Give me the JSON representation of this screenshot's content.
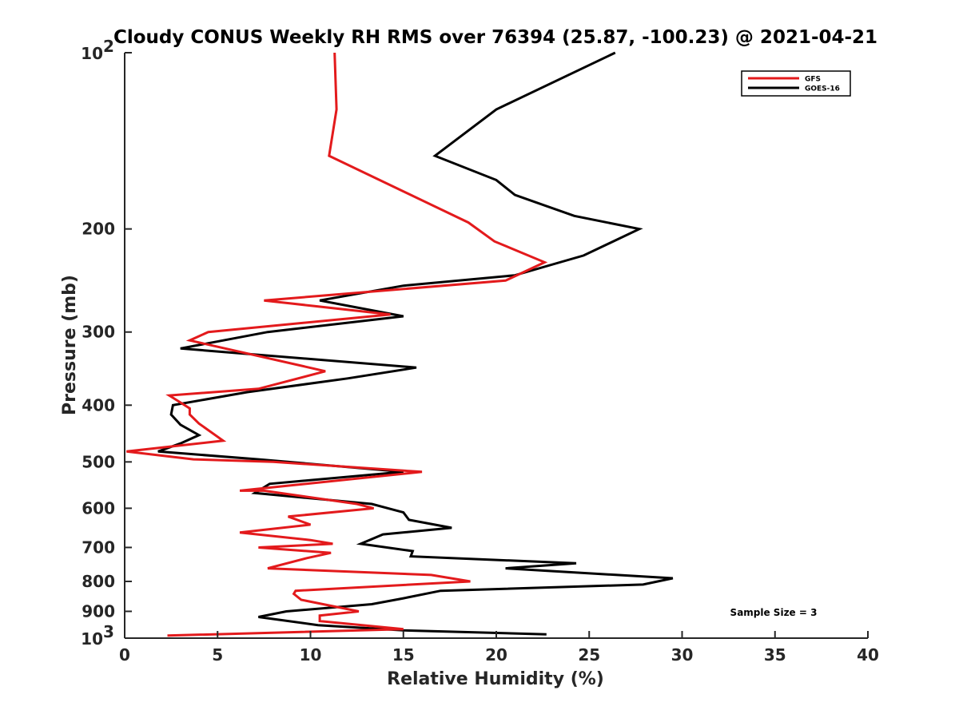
{
  "chart_data": {
    "type": "line",
    "title": "Cloudy CONUS Weekly RH RMS over 76394 (25.87, -100.23) @ 2021-04-21",
    "xlabel": "Relative Humidity (%)",
    "ylabel": "Pressure (mb)",
    "xlim": [
      0,
      40
    ],
    "ylim": [
      100,
      1000
    ],
    "yscale": "log",
    "y_reversed": true,
    "grid": false,
    "legend_position": "top-right",
    "x_ticks": [
      0,
      5,
      10,
      15,
      20,
      25,
      30,
      35,
      40
    ],
    "x_tick_labels": [
      "0",
      "5",
      "10",
      "15",
      "20",
      "25",
      "30",
      "35",
      "40"
    ],
    "y_ticks": [
      200,
      300,
      400,
      500,
      600,
      700,
      800,
      900
    ],
    "y_tick_labels": [
      "200",
      "300",
      "400",
      "500",
      "600",
      "700",
      "800",
      "900"
    ],
    "y_end_ticks": [
      {
        "value": 100,
        "base": "10",
        "exp": "2"
      },
      {
        "value": 1000,
        "base": "10",
        "exp": "3"
      }
    ],
    "annotation": "Sample Size = 3",
    "series": [
      {
        "name": "GFS",
        "color": "#e31a1c",
        "points": [
          [
            11.3,
            100
          ],
          [
            11.4,
            125
          ],
          [
            11.0,
            150
          ],
          [
            18.5,
            195
          ],
          [
            19.9,
            210
          ],
          [
            22.6,
            228
          ],
          [
            20.5,
            245
          ],
          [
            7.5,
            265
          ],
          [
            14.3,
            280
          ],
          [
            4.5,
            300
          ],
          [
            3.5,
            310
          ],
          [
            10.8,
            350
          ],
          [
            7.2,
            375
          ],
          [
            2.4,
            385
          ],
          [
            3.5,
            405
          ],
          [
            3.5,
            415
          ],
          [
            4.0,
            430
          ],
          [
            5.3,
            460
          ],
          [
            0.1,
            480
          ],
          [
            3.7,
            495
          ],
          [
            8.0,
            500
          ],
          [
            16.0,
            520
          ],
          [
            6.2,
            560
          ],
          [
            7.5,
            560
          ],
          [
            12.5,
            590
          ],
          [
            13.4,
            600
          ],
          [
            8.8,
            620
          ],
          [
            10.0,
            640
          ],
          [
            6.2,
            660
          ],
          [
            10.0,
            680
          ],
          [
            11.2,
            690
          ],
          [
            7.2,
            700
          ],
          [
            11.1,
            715
          ],
          [
            9.8,
            730
          ],
          [
            7.7,
            760
          ],
          [
            16.5,
            780
          ],
          [
            18.6,
            800
          ],
          [
            9.2,
            830
          ],
          [
            9.1,
            840
          ],
          [
            9.5,
            860
          ],
          [
            12.6,
            900
          ],
          [
            10.5,
            915
          ],
          [
            10.5,
            935
          ],
          [
            15.0,
            965
          ],
          [
            2.3,
            990
          ]
        ]
      },
      {
        "name": "GOES-16",
        "color": "#000000",
        "points": [
          [
            26.4,
            100
          ],
          [
            20.0,
            125
          ],
          [
            16.7,
            150
          ],
          [
            20.0,
            165
          ],
          [
            21.0,
            175
          ],
          [
            24.2,
            190
          ],
          [
            27.7,
            200
          ],
          [
            24.7,
            222
          ],
          [
            21.0,
            240
          ],
          [
            15.0,
            250
          ],
          [
            10.5,
            265
          ],
          [
            15.0,
            282
          ],
          [
            7.7,
            300
          ],
          [
            3.0,
            320
          ],
          [
            15.7,
            345
          ],
          [
            12.0,
            360
          ],
          [
            6.6,
            380
          ],
          [
            2.6,
            400
          ],
          [
            2.5,
            415
          ],
          [
            3.0,
            432
          ],
          [
            4.0,
            450
          ],
          [
            3.0,
            465
          ],
          [
            1.8,
            480
          ],
          [
            7.2,
            495
          ],
          [
            15.0,
            520
          ],
          [
            7.8,
            545
          ],
          [
            7.0,
            565
          ],
          [
            13.3,
            590
          ],
          [
            15.0,
            610
          ],
          [
            15.3,
            628
          ],
          [
            17.6,
            648
          ],
          [
            13.9,
            665
          ],
          [
            12.7,
            690
          ],
          [
            15.5,
            710
          ],
          [
            15.4,
            725
          ],
          [
            24.3,
            745
          ],
          [
            20.5,
            760
          ],
          [
            29.5,
            790
          ],
          [
            27.9,
            810
          ],
          [
            17.0,
            830
          ],
          [
            15.0,
            855
          ],
          [
            13.3,
            875
          ],
          [
            8.7,
            900
          ],
          [
            7.2,
            920
          ],
          [
            10.4,
            950
          ],
          [
            15.0,
            970
          ],
          [
            22.7,
            985
          ]
        ]
      }
    ]
  }
}
